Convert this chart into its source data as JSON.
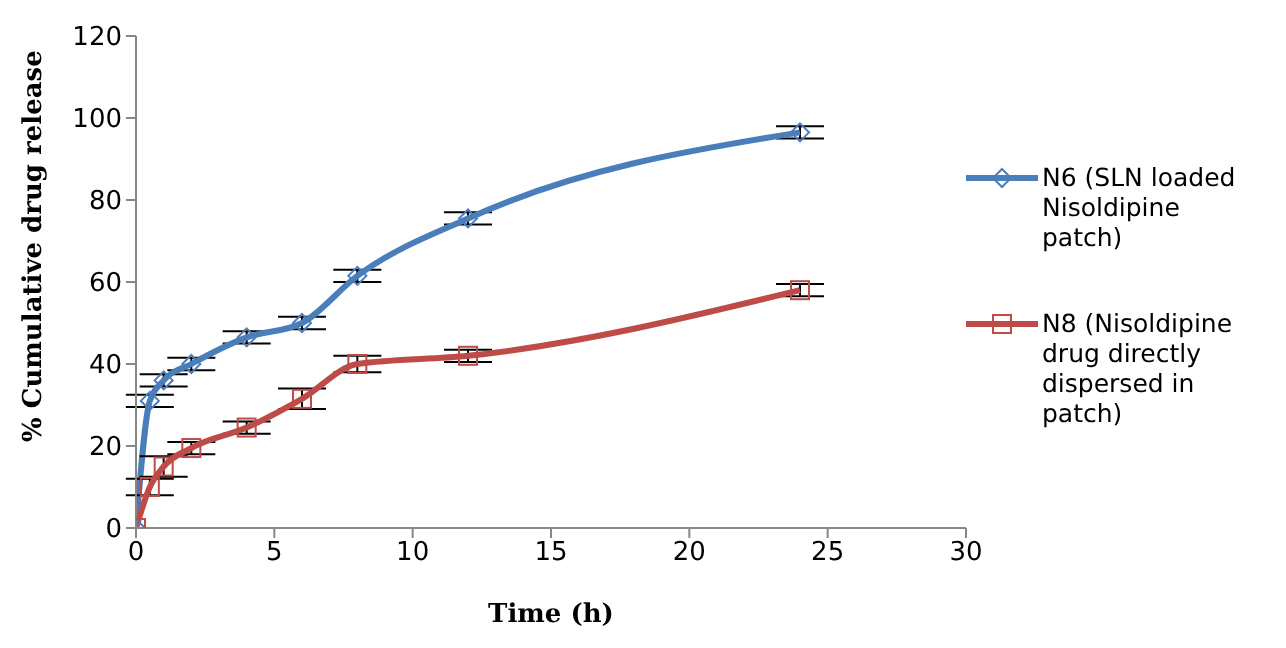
{
  "chart_data": {
    "type": "line",
    "xlabel": "Time (h)",
    "ylabel": "% Cumulative  drug release",
    "x": [
      0,
      0.5,
      1,
      2,
      4,
      6,
      8,
      12,
      24
    ],
    "series": [
      {
        "name": "N6 (SLN loaded Nisoldipine patch)",
        "color": "#4a7ebb",
        "marker": "diamond",
        "values": [
          0,
          31,
          36,
          40,
          46.5,
          50,
          61.5,
          75.5,
          96.5
        ],
        "errors": [
          null,
          1.5,
          1.5,
          1.5,
          1.5,
          1.5,
          1.5,
          1.5,
          1.5
        ]
      },
      {
        "name": "N8 (Nisoldipine drug directly dispersed in patch)",
        "color": "#be4b48",
        "marker": "square",
        "values": [
          0,
          10,
          15,
          19.5,
          24.5,
          31.5,
          40,
          42,
          58
        ],
        "errors": [
          null,
          2,
          2.5,
          1.5,
          1.5,
          2.5,
          2,
          1.5,
          1.5
        ]
      }
    ],
    "xlim": [
      0,
      30
    ],
    "xticks": [
      0,
      5,
      10,
      15,
      20,
      25,
      30
    ],
    "ylim": [
      0,
      120
    ],
    "yticks": [
      0,
      20,
      40,
      60,
      80,
      100,
      120
    ],
    "grid": false,
    "legend": "right",
    "line_style": "solid"
  }
}
